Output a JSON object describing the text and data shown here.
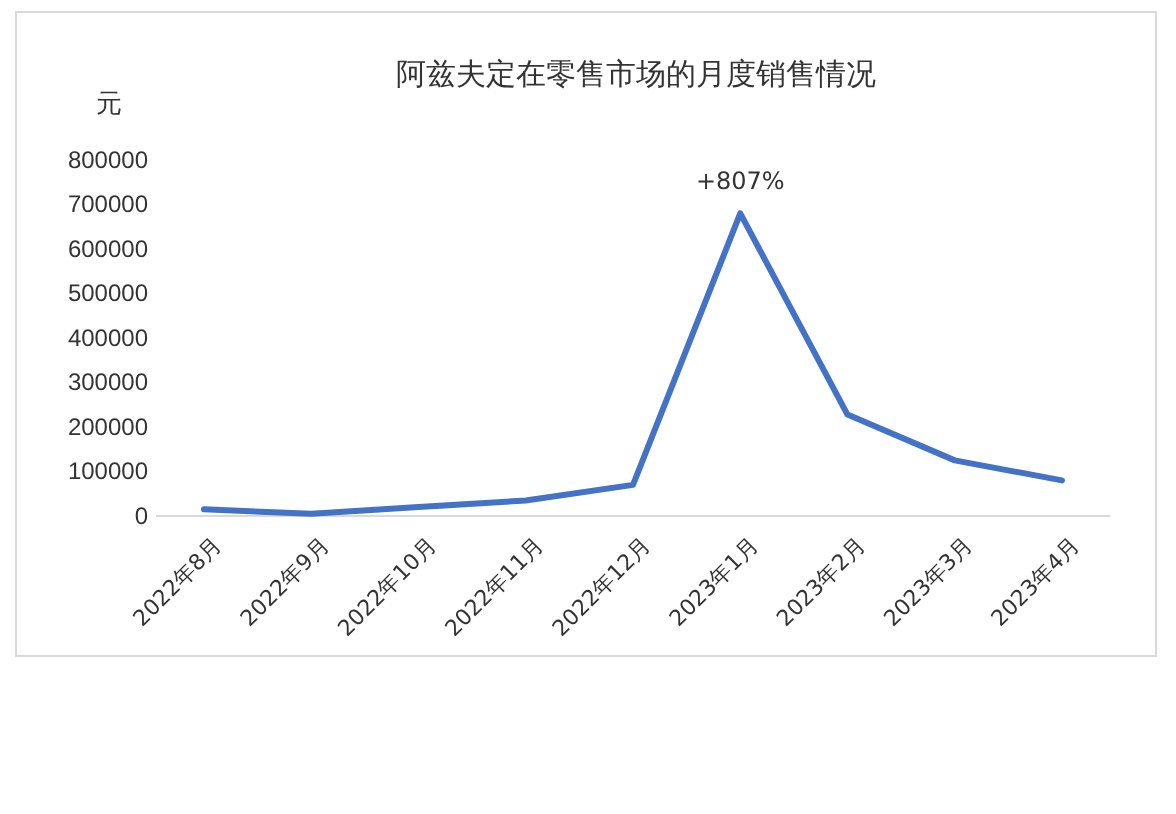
{
  "chart_data": {
    "type": "line",
    "title": "阿兹夫定在零售市场的月度销售情况",
    "ylabel": "元",
    "categories": [
      "2022年8月",
      "2022年9月",
      "2022年10月",
      "2022年11月",
      "2022年12月",
      "2023年1月",
      "2023年2月",
      "2023年3月",
      "2023年4月"
    ],
    "series": [
      {
        "color": "#4472c4",
        "values": [
          15000,
          5000,
          20000,
          35000,
          70000,
          680000,
          228000,
          125000,
          80000
        ]
      }
    ],
    "ylim": [
      0,
      800000
    ],
    "yticks": [
      0,
      100000,
      200000,
      300000,
      400000,
      500000,
      600000,
      700000,
      800000
    ],
    "annotations": [
      "+807%"
    ],
    "grid": false,
    "marker": "none",
    "line_style": "solid"
  }
}
